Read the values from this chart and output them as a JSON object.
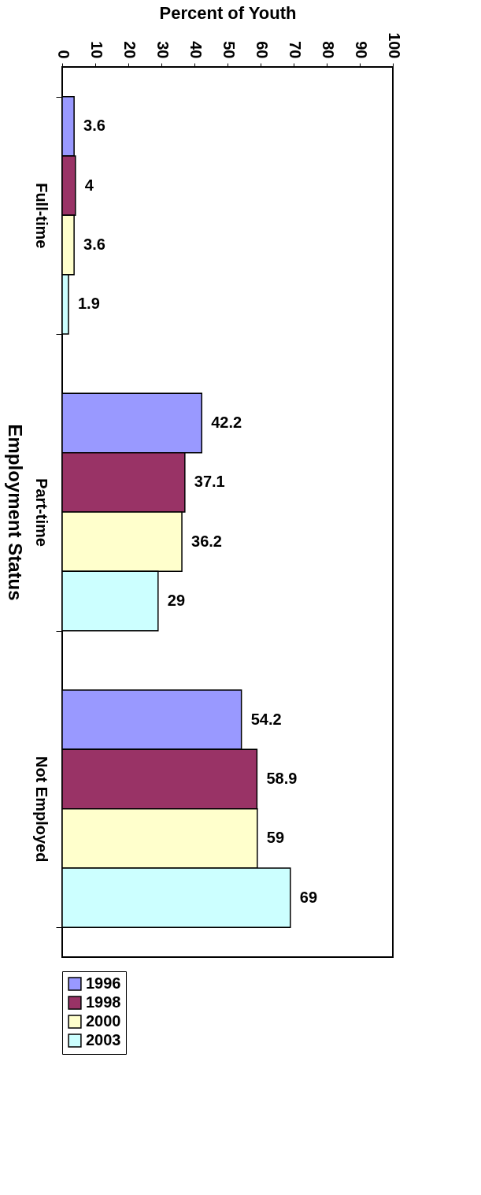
{
  "chart_data": {
    "type": "bar",
    "orientation": "horizontal",
    "xlabel": "Percent of Youth",
    "ylabel": "Employment Status",
    "categories": [
      "Full-time",
      "Part-time",
      "Not Employed"
    ],
    "series": [
      {
        "name": "1996",
        "color": "#9999ff",
        "values": [
          3.6,
          42.2,
          54.2
        ]
      },
      {
        "name": "1998",
        "color": "#993366",
        "values": [
          4,
          37.1,
          58.9
        ]
      },
      {
        "name": "2000",
        "color": "#ffffcc",
        "values": [
          3.6,
          36.2,
          59
        ]
      },
      {
        "name": "2003",
        "color": "#ccffff",
        "values": [
          1.9,
          29,
          69
        ]
      }
    ],
    "xlim": [
      0,
      100
    ],
    "xticks": [
      0,
      10,
      20,
      30,
      40,
      50,
      60,
      70,
      80,
      90,
      100
    ],
    "data_labels": true,
    "grid": false,
    "legend": "bottom"
  }
}
